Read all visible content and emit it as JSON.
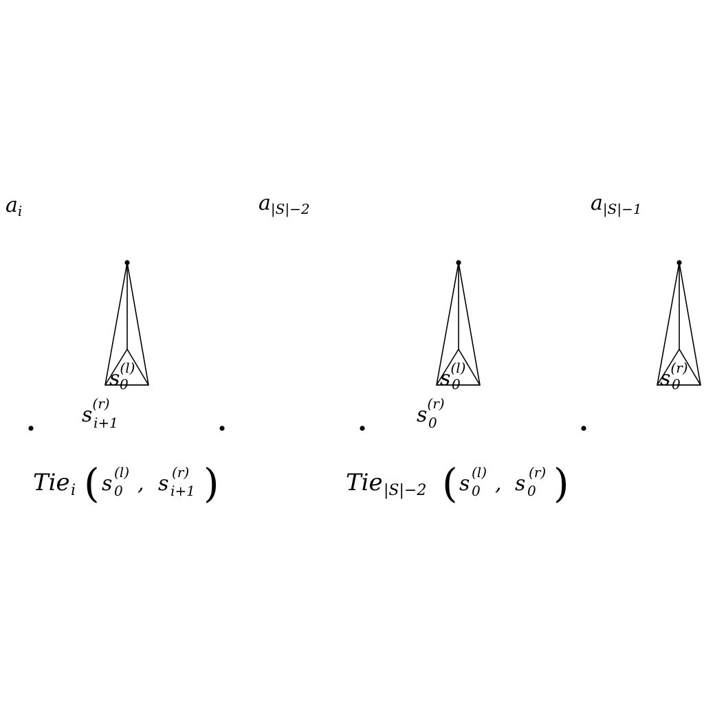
{
  "top_labels": {
    "a_i": {
      "base": "a",
      "sub": "i"
    },
    "a_s_minus_2": {
      "base": "a",
      "sub": "|S|−2"
    },
    "a_s_minus_1": {
      "base": "a",
      "sub": "|S|−1"
    }
  },
  "tie_i": {
    "inner_label": {
      "base": "s",
      "sup": "(l)",
      "sub": "0"
    },
    "outer_label": {
      "base": "s",
      "sup": "(r)",
      "sub": "i+1"
    },
    "formula": {
      "name": "Tie",
      "name_sub": "i",
      "arg1": {
        "base": "s",
        "sup": "(l)",
        "sub": "0"
      },
      "separator": ",",
      "arg2": {
        "base": "s",
        "sup": "(r)",
        "sub": "i+1"
      }
    }
  },
  "tie_s_minus_2": {
    "inner_label": {
      "base": "s",
      "sup": "(l)",
      "sub": "0"
    },
    "outer_label": {
      "base": "s",
      "sup": "(r)",
      "sub": "0"
    },
    "formula": {
      "name": "Tie",
      "name_sub": "|S|−2",
      "arg1": {
        "base": "s",
        "sup": "(l)",
        "sub": "0"
      },
      "separator": ",",
      "arg2": {
        "base": "s",
        "sup": "(r)",
        "sub": "0"
      }
    }
  },
  "last_triangle": {
    "inner_label": {
      "base": "s",
      "sup": "(r)",
      "sub": "0"
    }
  },
  "colors": {
    "ink": "#000000",
    "background": "#ffffff"
  }
}
